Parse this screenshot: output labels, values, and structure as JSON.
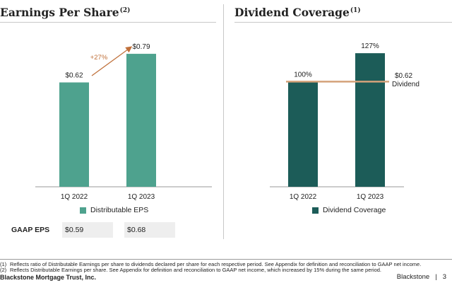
{
  "colors": {
    "eps_bar": "#4ea28e",
    "coverage_bar": "#1c5c58",
    "growth_arrow": "#c0703a",
    "dividend_line": "#d4a27a"
  },
  "left_panel": {
    "title": "Earnings Per Share",
    "title_note": "(2)",
    "legend_label": "Distributable EPS",
    "gaap": {
      "label": "GAAP EPS",
      "values": [
        "$0.59",
        "$0.68"
      ]
    }
  },
  "right_panel": {
    "title": "Dividend Coverage",
    "title_note": "(1)",
    "legend_label": "Dividend Coverage",
    "dividend_value": "$0.62",
    "dividend_label": "Dividend"
  },
  "chart_data": [
    {
      "type": "bar",
      "title": "Earnings Per Share",
      "categories": [
        "1Q 2022",
        "1Q 2023"
      ],
      "series": [
        {
          "name": "Distributable EPS",
          "values": [
            0.62,
            0.79
          ]
        }
      ],
      "data_labels": [
        "$0.62",
        "$0.79"
      ],
      "annotations": [
        {
          "text": "+27%",
          "from": "1Q 2022",
          "to": "1Q 2023"
        }
      ],
      "ylim": [
        0,
        0.95
      ],
      "xlabel": "",
      "ylabel": ""
    },
    {
      "type": "bar",
      "title": "Dividend Coverage",
      "categories": [
        "1Q 2022",
        "1Q 2023"
      ],
      "series": [
        {
          "name": "Dividend Coverage",
          "values": [
            100,
            127
          ]
        }
      ],
      "data_labels": [
        "100%",
        "127%"
      ],
      "reference_line": {
        "value": 100,
        "label": "$0.62 Dividend"
      },
      "ylim": [
        0,
        152
      ],
      "xlabel": "",
      "ylabel": ""
    }
  ],
  "footnotes": [
    {
      "num": "(1)",
      "text": "Reflects ratio of Distributable Earnings per share to dividends declared per share for each respective period. See Appendix for definition and reconciliation to GAAP net income."
    },
    {
      "num": "(2)",
      "text": "Reflects Distributable Earnings per share. See Appendix for definition and reconciliation to GAAP net income, which increased by 15% during the same period."
    }
  ],
  "footer": {
    "company": "Blackstone Mortgage Trust, Inc.",
    "brand": "Blackstone",
    "page": "3"
  }
}
